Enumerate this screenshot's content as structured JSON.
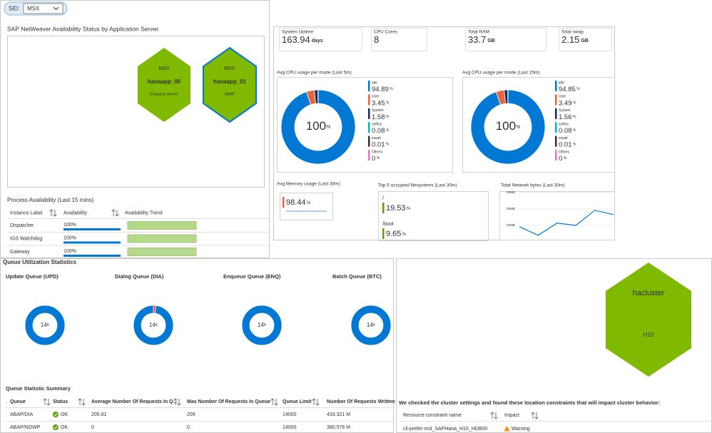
{
  "filter": {
    "label": "SID:",
    "value": "MSX"
  },
  "availability": {
    "title": "SAP NetWeaver Availability Status by Application Server.",
    "servers": [
      {
        "sid": "MSX",
        "name": "hanaapp_00",
        "role": "Enqueue Server"
      },
      {
        "sid": "MSX",
        "name": "hanaapp_01",
        "role": "ABAP"
      }
    ]
  },
  "process_availability": {
    "title": "Process Availability (Last 15 mins)",
    "columns": [
      "Instance Label",
      "Availability",
      "Availability Trend"
    ],
    "rows": [
      {
        "label": "Dispatcher",
        "value": 100,
        "value_label": "100%"
      },
      {
        "label": "IGS Watchdog",
        "value": 100,
        "value_label": "100%"
      },
      {
        "label": "Gateway",
        "value": 100,
        "value_label": "100%"
      }
    ]
  },
  "tiles": [
    {
      "label": "System Uptime",
      "value": 163.94,
      "unit": "days"
    },
    {
      "label": "CPU Cores",
      "value": 8
    },
    {
      "label": "Total RAM",
      "value": 33.7,
      "unit": "GB"
    },
    {
      "label": "Total swap",
      "value": 2.15,
      "unit": "GB"
    }
  ],
  "cpu_charts": [
    {
      "type": "donut",
      "title": "Avg CPU usage per mode (Last 5m)",
      "center_value": 100,
      "unit": "%",
      "series": [
        {
          "name": "idle",
          "color": "#0078d4",
          "value": 94.89
        },
        {
          "name": "User",
          "color": "#e8643c",
          "value": 3.45
        },
        {
          "name": "System",
          "color": "#1b2a5c",
          "value": 1.58
        },
        {
          "name": "softirq",
          "color": "#00b7c3",
          "value": 0.08
        },
        {
          "name": "iowait",
          "color": "#3b2448",
          "value": 0.01
        },
        {
          "name": "Others",
          "color": "#e374c2",
          "value": 0
        }
      ]
    },
    {
      "type": "donut",
      "title": "Avg CPU usage per mode (Last 15m)",
      "center_value": 100,
      "unit": "%",
      "series": [
        {
          "name": "idle",
          "color": "#0078d4",
          "value": 94.85
        },
        {
          "name": "User",
          "color": "#e8643c",
          "value": 3.49
        },
        {
          "name": "System",
          "color": "#1b2a5c",
          "value": 1.56
        },
        {
          "name": "softirq",
          "color": "#00b7c3",
          "value": 0.08
        },
        {
          "name": "iowait",
          "color": "#3b2448",
          "value": 0.01
        },
        {
          "name": "Others",
          "color": "#e374c2",
          "value": 0
        }
      ]
    }
  ],
  "memory": {
    "title": "Avg Memory usage (Last 30m)",
    "value": 98.44,
    "unit": "%",
    "color": "#e8643c"
  },
  "filesystems": {
    "title": "Top 5 occupied filesystems (Last 30m)",
    "unit": "%",
    "color": "#57a300",
    "items": [
      {
        "name": "/",
        "value": 19.53
      },
      {
        "name": "/boot",
        "value": 9.65
      }
    ]
  },
  "network": {
    "type": "line",
    "title": "Total Network bytes (Last 30m)",
    "categories": [
      null,
      null,
      null,
      null,
      null,
      null
    ],
    "values": [
      19.6,
      17,
      20.7,
      20,
      24.6,
      23.3
    ],
    "color": "#0078d4",
    "ylim": [
      15,
      30
    ],
    "yticks": [
      {
        "value": 30,
        "label": "30MB"
      },
      {
        "value": 25,
        "label": "25MB"
      },
      {
        "value": 20,
        "label": "20MB"
      }
    ],
    "grid": true
  },
  "queues": {
    "title": "Queue Utilization Statistics",
    "center_unit": "K",
    "colors": [
      "#e8443a",
      "#0078d4"
    ],
    "items": [
      {
        "name": "Update Queue (UPD)",
        "center_value": 14,
        "values": [
          0,
          14
        ]
      },
      {
        "name": "Dialog Queue (DIA)",
        "center_value": 14,
        "values": [
          0.3,
          13.7
        ]
      },
      {
        "name": "Enqueue Queue (ENQ)",
        "center_value": 14,
        "values": [
          0,
          14
        ]
      },
      {
        "name": "Batch Queue (BTC)",
        "center_value": 14,
        "values": [
          0,
          14
        ]
      }
    ]
  },
  "queue_summary": {
    "title": "Queue Statistic Summary",
    "columns": [
      "Queue",
      "Status",
      "Average Number Of Requests In Q...",
      "Max Number Of Requests In Queue",
      "Queue Limit",
      "Number Of Requests Written"
    ],
    "rows": [
      [
        "ABAP/DIA",
        "OK",
        205.81,
        209,
        14000,
        "433.321 M"
      ],
      [
        "ABAP/NOWP",
        "OK",
        0,
        0,
        14000,
        "380.576 M"
      ]
    ]
  },
  "cluster": {
    "name": "hacluster",
    "sid": "H10",
    "message": "We checked the cluster settings and found these location constraints that will impact cluster behavior:",
    "columns": [
      "Resource constraint name",
      "Impact"
    ],
    "rows": [
      [
        "cli-prefer-msl_SAPHana_H10_HDB00",
        "Warning"
      ]
    ]
  }
}
